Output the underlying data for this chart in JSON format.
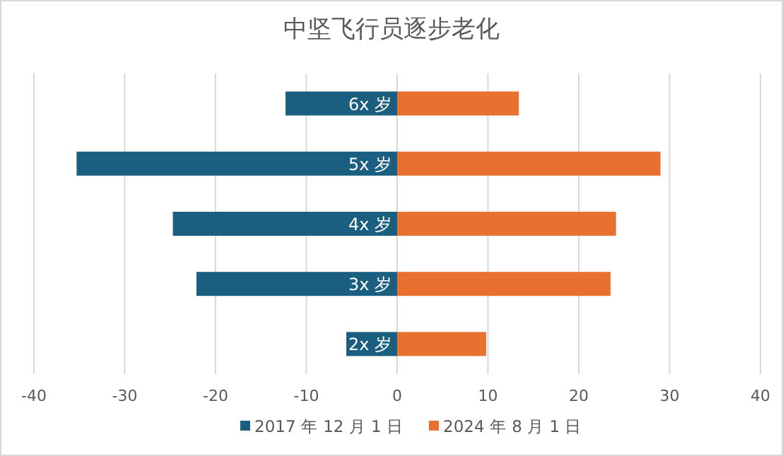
{
  "chart_data": {
    "type": "bar",
    "title": "中坚飞行员逐步老化",
    "orientation": "horizontal",
    "stacked": true,
    "categories": [
      "6x 岁",
      "5x 岁",
      "4x 岁",
      "3x 岁",
      "2x 岁"
    ],
    "series": [
      {
        "name": "2017 年 12 月 1 日",
        "color": "#1a5e80",
        "values": [
          -12.3,
          -35.3,
          -24.7,
          -22.1,
          -5.6
        ]
      },
      {
        "name": "2024 年 8 月 1 日",
        "color": "#e87130",
        "values": [
          13.4,
          29.0,
          24.1,
          23.5,
          9.8
        ]
      }
    ],
    "xlim": [
      -40,
      40
    ],
    "xticks": [
      -40,
      -30,
      -20,
      -10,
      0,
      10,
      20,
      30,
      40
    ],
    "grid": "x",
    "legend": "bottom"
  }
}
